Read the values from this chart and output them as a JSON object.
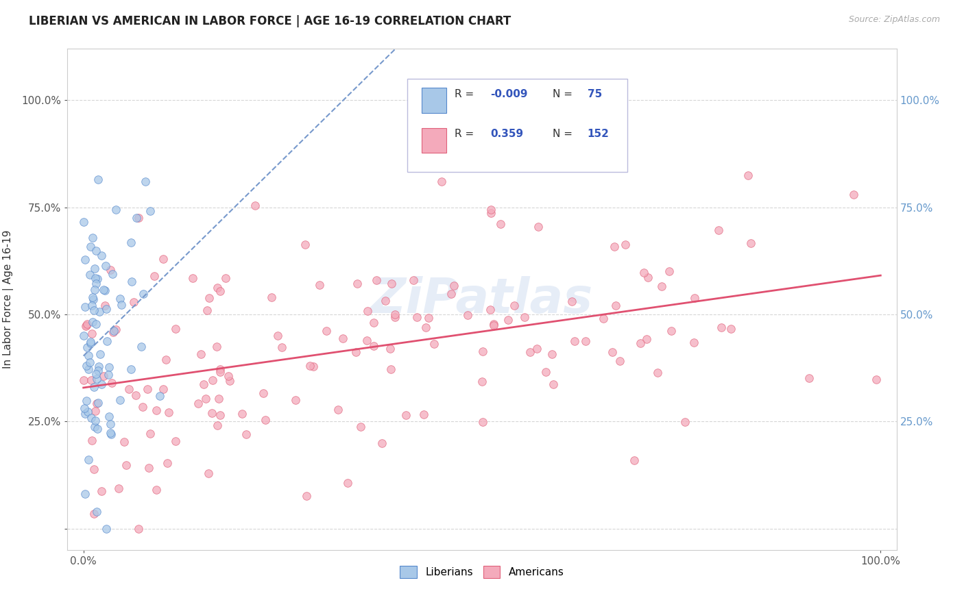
{
  "title": "LIBERIAN VS AMERICAN IN LABOR FORCE | AGE 16-19 CORRELATION CHART",
  "source": "Source: ZipAtlas.com",
  "ylabel": "In Labor Force | Age 16-19",
  "xlim": [
    -0.02,
    1.02
  ],
  "ylim": [
    -0.05,
    1.12
  ],
  "yticks": [
    0.0,
    0.25,
    0.5,
    0.75,
    1.0
  ],
  "liberian_R": -0.009,
  "liberian_N": 75,
  "american_R": 0.359,
  "american_N": 152,
  "liberian_fill": "#a8c8e8",
  "liberian_edge": "#5588cc",
  "american_fill": "#f4aabb",
  "american_edge": "#e0607a",
  "american_line_color": "#e05070",
  "liberian_line_color": "#7799cc",
  "legend_label_1": "Liberians",
  "legend_label_2": "Americans",
  "bg_color": "#ffffff",
  "watermark": "ZiPatlas",
  "title_color": "#222222",
  "source_color": "#aaaaaa",
  "right_tick_color": "#6699cc",
  "left_tick_color": "#555555"
}
